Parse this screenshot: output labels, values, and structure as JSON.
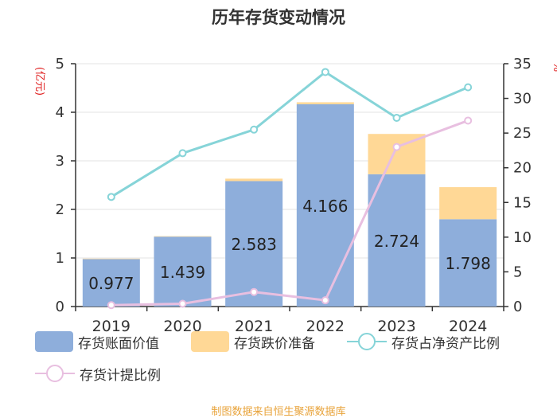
{
  "title": "历年存货变动情况",
  "source": "制图数据来自恒生聚源数据库",
  "colors": {
    "book_value": "#8eaedb",
    "impairment": "#ffd896",
    "ratio_net_assets": "#86d4d8",
    "provision_ratio": "#e8bfe0",
    "axis_label_red": "#e02020",
    "source_text": "#e8a33a"
  },
  "chart_data": {
    "type": "bar",
    "title": "历年存货变动情况",
    "categories": [
      "2019",
      "2020",
      "2021",
      "2022",
      "2023",
      "2024"
    ],
    "left_axis": {
      "label": "(亿元)",
      "min": 0,
      "max": 5,
      "ticks": [
        0,
        1,
        2,
        3,
        4,
        5
      ]
    },
    "right_axis": {
      "label": "%",
      "min": 0,
      "max": 35,
      "ticks": [
        0,
        5,
        10,
        15,
        20,
        25,
        30,
        35
      ]
    },
    "series": [
      {
        "name": "存货账面价值",
        "kind": "stacked-bar",
        "axis": "left",
        "values": [
          0.977,
          1.439,
          2.583,
          4.166,
          2.724,
          1.798
        ],
        "labels": [
          "0.977",
          "1.439",
          "2.583",
          "4.166",
          "2.724",
          "1.798"
        ]
      },
      {
        "name": "存货跌价准备",
        "kind": "stacked-bar",
        "axis": "left",
        "values": [
          0.01,
          0.01,
          0.05,
          0.04,
          0.83,
          0.66
        ]
      },
      {
        "name": "存货占净资产比例",
        "kind": "line",
        "axis": "right",
        "values": [
          15.8,
          22.1,
          25.5,
          33.8,
          27.2,
          31.6
        ]
      },
      {
        "name": "存货计提比例",
        "kind": "line",
        "axis": "right",
        "values": [
          0.2,
          0.4,
          2.1,
          0.9,
          23.0,
          26.8
        ]
      }
    ]
  }
}
